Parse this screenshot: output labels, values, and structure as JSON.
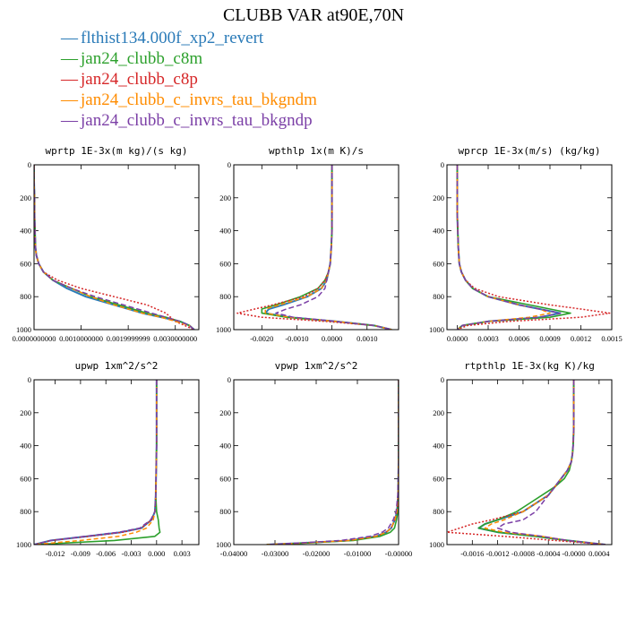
{
  "figure": {
    "title": "CLUBB VAR at90E,70N",
    "legend": [
      {
        "label": "flthist134.000f_xp2_revert",
        "color": "#2b7bb8"
      },
      {
        "label": "jan24_clubb_c8m",
        "color": "#2ca02c"
      },
      {
        "label": "jan24_clubb_c8p",
        "color": "#d62728"
      },
      {
        "label": "jan24_clubb_c_invrs_tau_bkgndm",
        "color": "#ff8c00"
      },
      {
        "label": "jan24_clubb_c_invrs_tau_bkgndp",
        "color": "#7b3fa6"
      }
    ]
  },
  "chart_data": [
    {
      "type": "line",
      "title": "wprtp  1E-3x(m kg)/(s kg)",
      "xlim": [
        0.0,
        0.0035
      ],
      "ylim": [
        1000,
        0
      ],
      "xticks": [
        0.0,
        0.001,
        0.002,
        0.003
      ],
      "xtick_labels": [
        "0.0000000000",
        "0.0010000000",
        "0.0019999999",
        "0.0030000000"
      ],
      "yticks": [
        0,
        200,
        400,
        600,
        800,
        1000
      ],
      "levels": [
        0,
        100,
        200,
        300,
        400,
        500,
        550,
        600,
        650,
        700,
        750,
        800,
        850,
        900,
        925,
        950,
        975,
        1000
      ],
      "series": [
        {
          "values": [
            0,
            0,
            1e-05,
            1e-05,
            2e-05,
            3e-05,
            5e-05,
            0.0001,
            0.0002,
            0.0004,
            0.0007,
            0.0011,
            0.0017,
            0.0023,
            0.0027,
            0.0031,
            0.0033,
            0.0034
          ]
        },
        {
          "values": [
            0,
            0,
            1e-05,
            1e-05,
            2e-05,
            3e-05,
            5e-05,
            0.0001,
            0.0002,
            0.0004,
            0.0008,
            0.0012,
            0.0018,
            0.0024,
            0.0028,
            0.0031,
            0.0033,
            0.0034
          ]
        },
        {
          "values": [
            0,
            0,
            1e-05,
            1e-05,
            2e-05,
            3e-05,
            5e-05,
            0.0001,
            0.0002,
            0.0005,
            0.001,
            0.0017,
            0.0024,
            0.0028,
            0.0029,
            0.003,
            0.0032,
            0.0034
          ]
        },
        {
          "values": [
            0,
            0,
            1e-05,
            1e-05,
            2e-05,
            3e-05,
            5e-05,
            0.0001,
            0.0002,
            0.0004,
            0.0008,
            0.0012,
            0.0017,
            0.0023,
            0.0027,
            0.003,
            0.0033,
            0.0034
          ]
        },
        {
          "values": [
            0,
            0,
            1e-05,
            1e-05,
            2e-05,
            3e-05,
            5e-05,
            0.0001,
            0.0002,
            0.0004,
            0.0008,
            0.0013,
            0.0019,
            0.0025,
            0.0028,
            0.0031,
            0.0033,
            0.0034
          ]
        }
      ]
    },
    {
      "type": "line",
      "title": "wpthlp  1x(m K)/s",
      "xlim": [
        -0.0028,
        0.0019
      ],
      "ylim": [
        1000,
        0
      ],
      "xticks": [
        -0.002,
        -0.001,
        0.0,
        0.001
      ],
      "xtick_labels": [
        "-0.0020",
        "-0.0010",
        "0.0000",
        "0.0010"
      ],
      "yticks": [
        0,
        200,
        400,
        600,
        800,
        1000
      ],
      "levels": [
        0,
        200,
        400,
        500,
        600,
        650,
        700,
        750,
        800,
        850,
        875,
        900,
        925,
        950,
        975,
        1000
      ],
      "series": [
        {
          "values": [
            0,
            0,
            0,
            -2e-05,
            -5e-05,
            -0.0001,
            -0.00015,
            -0.0003,
            -0.0007,
            -0.0014,
            -0.0018,
            -0.0019,
            -0.0012,
            0.0001,
            0.0012,
            0.0017
          ]
        },
        {
          "values": [
            0,
            0,
            0,
            -2e-05,
            -5e-05,
            -0.0001,
            -0.0002,
            -0.0004,
            -0.0009,
            -0.0016,
            -0.002,
            -0.002,
            -0.0013,
            0.0001,
            0.0012,
            0.0017
          ]
        },
        {
          "values": [
            0,
            0,
            0,
            -2e-05,
            -5e-05,
            -0.0001,
            -0.0002,
            -0.0004,
            -0.0008,
            -0.0017,
            -0.0022,
            -0.0027,
            -0.002,
            -0.0002,
            0.0012,
            0.0017
          ]
        },
        {
          "values": [
            0,
            0,
            0,
            -2e-05,
            -5e-05,
            -0.0001,
            -0.00015,
            -0.0003,
            -0.0007,
            -0.0015,
            -0.0019,
            -0.0019,
            -0.0012,
            0.0001,
            0.0012,
            0.0017
          ]
        },
        {
          "values": [
            0,
            0,
            0,
            -2e-05,
            -5e-05,
            -0.0001,
            -0.00015,
            -0.0002,
            -0.0004,
            -0.0009,
            -0.0013,
            -0.0016,
            -0.0011,
            0.0001,
            0.0012,
            0.0017
          ]
        }
      ]
    },
    {
      "type": "line",
      "title": "wprcp  1E-3x(m/s) (kg/kg)",
      "xlim": [
        -0.0001,
        0.0015
      ],
      "ylim": [
        1000,
        0
      ],
      "xticks": [
        0.0,
        0.0003,
        0.0006,
        0.0009,
        0.0012,
        0.0015
      ],
      "xtick_labels": [
        "0.0000",
        "0.0003",
        "0.0006",
        "0.0009",
        "0.0012",
        "0.0015"
      ],
      "yticks": [
        0,
        200,
        400,
        600,
        800,
        1000
      ],
      "levels": [
        0,
        300,
        500,
        600,
        650,
        700,
        750,
        800,
        850,
        875,
        900,
        925,
        950,
        975,
        1000
      ],
      "series": [
        {
          "values": [
            0,
            0,
            1e-05,
            2e-05,
            4e-05,
            8e-05,
            0.00015,
            0.0003,
            0.0006,
            0.0008,
            0.001,
            0.0008,
            0.0003,
            5e-05,
            0
          ]
        },
        {
          "values": [
            0,
            0,
            1e-05,
            2e-05,
            4e-05,
            8e-05,
            0.00015,
            0.0003,
            0.0007,
            0.0009,
            0.0011,
            0.0009,
            0.0003,
            5e-05,
            0
          ]
        },
        {
          "values": [
            0,
            0,
            1e-05,
            2e-05,
            4e-05,
            8e-05,
            0.00017,
            0.0004,
            0.0009,
            0.0012,
            0.00148,
            0.0012,
            0.0005,
            0.0001,
            0
          ]
        },
        {
          "values": [
            0,
            0,
            1e-05,
            2e-05,
            4e-05,
            8e-05,
            0.00015,
            0.0003,
            0.0006,
            0.0008,
            0.0009,
            0.0007,
            0.0003,
            5e-05,
            0
          ]
        },
        {
          "values": [
            0,
            0,
            1e-05,
            2e-05,
            4e-05,
            8e-05,
            0.00015,
            0.0003,
            0.0006,
            0.0008,
            0.001,
            0.0008,
            0.0003,
            5e-05,
            0
          ]
        }
      ]
    },
    {
      "type": "line",
      "title": "upwp  1xm^2/s^2",
      "xlim": [
        -0.0145,
        0.005
      ],
      "ylim": [
        1000,
        0
      ],
      "xticks": [
        -0.012,
        -0.009,
        -0.006,
        -0.003,
        0.0,
        0.003
      ],
      "xtick_labels": [
        "-0.012",
        "-0.009",
        "-0.006",
        "-0.003",
        "0.000",
        "0.003"
      ],
      "yticks": [
        0,
        200,
        400,
        600,
        800,
        1000
      ],
      "levels": [
        0,
        400,
        700,
        800,
        850,
        900,
        925,
        950,
        975,
        1000
      ],
      "series": [
        {
          "values": [
            0,
            0,
            -0.0001,
            -0.0002,
            -0.0006,
            -0.0018,
            -0.0042,
            -0.0082,
            -0.0125,
            -0.0145
          ]
        },
        {
          "values": [
            0,
            0,
            -0.0001,
            0.0,
            0.0002,
            0.0003,
            0.0004,
            -0.0002,
            -0.005,
            -0.0145
          ]
        },
        {
          "values": [
            0,
            0,
            -0.0001,
            -0.0002,
            -0.0006,
            -0.0018,
            -0.004,
            -0.008,
            -0.0125,
            -0.0145
          ]
        },
        {
          "values": [
            0,
            0,
            -0.0001,
            -0.0002,
            -0.0004,
            -0.0012,
            -0.0024,
            -0.0045,
            -0.009,
            -0.0145
          ]
        },
        {
          "values": [
            0,
            0,
            -0.0001,
            -0.0002,
            -0.0007,
            -0.002,
            -0.0045,
            -0.0085,
            -0.0125,
            -0.0145
          ]
        }
      ]
    },
    {
      "type": "line",
      "title": "vpwp  1xm^2/s^2",
      "xlim": [
        -0.04,
        0.0
      ],
      "ylim": [
        1000,
        0
      ],
      "xticks": [
        -0.04,
        -0.03,
        -0.02,
        -0.01,
        0.0
      ],
      "xtick_labels": [
        "-0.04000",
        "-0.03000",
        "-0.02000",
        "-0.01000",
        "-0.00000"
      ],
      "yticks": [
        0,
        200,
        400,
        600,
        800,
        1000
      ],
      "levels": [
        0,
        500,
        700,
        800,
        850,
        900,
        925,
        950,
        975,
        990,
        1000
      ],
      "series": [
        {
          "values": [
            0,
            0,
            -0.0001,
            -0.0004,
            -0.0009,
            -0.0018,
            -0.003,
            -0.0055,
            -0.012,
            -0.023,
            -0.032
          ]
        },
        {
          "values": [
            0,
            0,
            -0.0001,
            -0.0002,
            -0.0005,
            -0.001,
            -0.002,
            -0.0045,
            -0.011,
            -0.022,
            -0.032
          ]
        },
        {
          "values": [
            0,
            0,
            -0.0001,
            -0.0004,
            -0.0009,
            -0.0018,
            -0.003,
            -0.0055,
            -0.012,
            -0.023,
            -0.032
          ]
        },
        {
          "values": [
            0,
            0,
            -0.0001,
            -0.0004,
            -0.0009,
            -0.0018,
            -0.003,
            -0.0055,
            -0.012,
            -0.023,
            -0.032
          ]
        },
        {
          "values": [
            0,
            0,
            -0.0002,
            -0.0006,
            -0.0013,
            -0.0025,
            -0.004,
            -0.007,
            -0.014,
            -0.024,
            -0.032
          ]
        }
      ]
    },
    {
      "type": "line",
      "title": "rtpthlp  1E-3x(kg K)/kg",
      "xlim": [
        -0.002,
        0.0006
      ],
      "ylim": [
        1000,
        0
      ],
      "xticks": [
        -0.0016,
        -0.0012,
        -0.0008,
        -0.0004,
        0.0,
        0.0004
      ],
      "xtick_labels": [
        "-0.0016",
        "-0.0012",
        "-0.0008",
        "-0.0004",
        "-0.0000",
        "0.0004"
      ],
      "yticks": [
        0,
        200,
        400,
        600,
        800,
        1000
      ],
      "levels": [
        0,
        300,
        400,
        450,
        500,
        550,
        600,
        650,
        700,
        750,
        800,
        850,
        875,
        900,
        925,
        950,
        975,
        1000
      ],
      "series": [
        {
          "values": [
            0,
            0,
            -1e-05,
            -2e-05,
            -4e-05,
            -0.0001,
            -0.0002,
            -0.0003,
            -0.0004,
            -0.0006,
            -0.0008,
            -0.0012,
            -0.0014,
            -0.0015,
            -0.0012,
            -0.0006,
            -0.0001,
            0.0005
          ]
        },
        {
          "values": [
            0,
            0,
            -1e-05,
            -2e-05,
            -4e-05,
            -7e-05,
            -0.00015,
            -0.0003,
            -0.0005,
            -0.0007,
            -0.0009,
            -0.0012,
            -0.0014,
            -0.0015,
            -0.0012,
            -0.0006,
            -0.0001,
            0.0005
          ]
        },
        {
          "values": [
            0,
            0,
            -1e-05,
            -2e-05,
            -4e-05,
            -0.0001,
            -0.0002,
            -0.0003,
            -0.0004,
            -0.0006,
            -0.0008,
            -0.0013,
            -0.0016,
            -0.0018,
            -0.002,
            -0.0011,
            -0.0003,
            0.0005
          ]
        },
        {
          "values": [
            0,
            0,
            -1e-05,
            -2e-05,
            -4e-05,
            -0.0001,
            -0.0002,
            -0.0003,
            -0.0004,
            -0.0006,
            -0.0008,
            -0.0011,
            -0.0013,
            -0.0014,
            -0.0011,
            -0.0005,
            -0.0001,
            0.0005
          ]
        },
        {
          "values": [
            0,
            0,
            -1e-05,
            -2e-05,
            -4e-05,
            -0.0001,
            -0.0002,
            -0.0003,
            -0.0004,
            -0.0005,
            -0.0006,
            -0.0008,
            -0.0011,
            -0.0012,
            -0.001,
            -0.0005,
            -0.0001,
            0.0005
          ]
        }
      ]
    }
  ]
}
